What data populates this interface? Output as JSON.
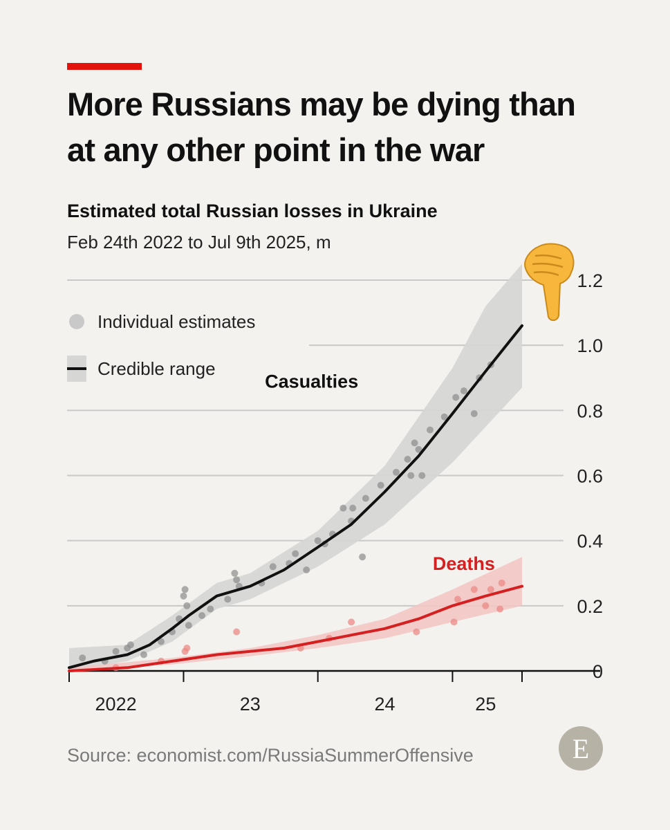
{
  "header": {
    "title": "More Russians may be dying than at any other point in the war",
    "subtitle": "Estimated total Russian losses in Ukraine",
    "units": "Feb 24th 2022 to Jul 9th 2025, m"
  },
  "legend": {
    "estimates_label": "Individual estimates",
    "range_label": "Credible range"
  },
  "footer": {
    "source": "Source: economist.com/RussiaSummerOffensive",
    "logo_letter": "E"
  },
  "overlay": {
    "emoji": "backhand-index-pointing-down-emoji"
  },
  "colors": {
    "background": "#f3f2ee",
    "accent": "#e3120b",
    "casualties_line": "#111111",
    "casualties_band": "#d6d6d4",
    "deaths_line": "#d42020",
    "deaths_band": "#f2c6c3",
    "grid": "#c8c8c8"
  },
  "chart_data": {
    "type": "line",
    "x_start": "2022-02-24",
    "x_end": "2025-07-09",
    "ylim": [
      0,
      1.2
    ],
    "y_ticks": [
      0,
      0.2,
      0.4,
      0.6,
      0.8,
      1.0,
      1.2
    ],
    "y_tick_labels": [
      "0",
      "0.2",
      "0.4",
      "0.6",
      "0.8",
      "1.0",
      "1.2"
    ],
    "x_ticks": [
      "2022-01-01",
      "2023-01-01",
      "2024-01-01",
      "2025-01-01"
    ],
    "x_tick_labels": [
      "2022",
      "23",
      "24",
      "25"
    ],
    "x_label_dates": [
      "2022-07-01",
      "2023-07-01",
      "2024-07-01",
      "2025-04-01"
    ],
    "grid": true,
    "legend_position": "top-left",
    "series": [
      {
        "name": "Casualties",
        "label_at": {
          "x": "2024-04-20",
          "y": 0.87
        },
        "line": [
          [
            "2022-02-24",
            0.01
          ],
          [
            "2022-05-01",
            0.03
          ],
          [
            "2022-08-01",
            0.05
          ],
          [
            "2022-10-01",
            0.08
          ],
          [
            "2022-12-01",
            0.13
          ],
          [
            "2023-01-15",
            0.17
          ],
          [
            "2023-04-01",
            0.23
          ],
          [
            "2023-07-01",
            0.26
          ],
          [
            "2023-10-01",
            0.31
          ],
          [
            "2024-01-01",
            0.38
          ],
          [
            "2024-04-01",
            0.45
          ],
          [
            "2024-07-01",
            0.55
          ],
          [
            "2024-10-01",
            0.66
          ],
          [
            "2025-01-01",
            0.79
          ],
          [
            "2025-04-01",
            0.92
          ],
          [
            "2025-07-09",
            1.06
          ]
        ],
        "band_lower": [
          [
            "2022-02-24",
            0.0
          ],
          [
            "2022-08-01",
            0.03
          ],
          [
            "2022-12-01",
            0.09
          ],
          [
            "2023-04-01",
            0.19
          ],
          [
            "2023-07-01",
            0.22
          ],
          [
            "2024-01-01",
            0.32
          ],
          [
            "2024-07-01",
            0.45
          ],
          [
            "2025-01-01",
            0.64
          ],
          [
            "2025-07-09",
            0.87
          ]
        ],
        "band_upper": [
          [
            "2022-02-24",
            0.07
          ],
          [
            "2022-08-01",
            0.08
          ],
          [
            "2022-12-01",
            0.17
          ],
          [
            "2023-04-01",
            0.27
          ],
          [
            "2023-07-01",
            0.3
          ],
          [
            "2024-01-01",
            0.43
          ],
          [
            "2024-07-01",
            0.63
          ],
          [
            "2025-01-01",
            0.93
          ],
          [
            "2025-04-01",
            1.12
          ],
          [
            "2025-07-09",
            1.25
          ]
        ],
        "estimates": [
          [
            "2022-04-01",
            0.04
          ],
          [
            "2022-06-01",
            0.03
          ],
          [
            "2022-07-01",
            0.06
          ],
          [
            "2022-08-01",
            0.07
          ],
          [
            "2022-08-10",
            0.08
          ],
          [
            "2022-09-15",
            0.05
          ],
          [
            "2022-11-01",
            0.09
          ],
          [
            "2022-12-01",
            0.12
          ],
          [
            "2022-12-20",
            0.16
          ],
          [
            "2023-01-01",
            0.23
          ],
          [
            "2023-01-05",
            0.25
          ],
          [
            "2023-01-10",
            0.2
          ],
          [
            "2023-01-15",
            0.14
          ],
          [
            "2023-02-20",
            0.17
          ],
          [
            "2023-03-15",
            0.19
          ],
          [
            "2023-05-01",
            0.22
          ],
          [
            "2023-05-20",
            0.3
          ],
          [
            "2023-05-25",
            0.28
          ],
          [
            "2023-06-01",
            0.26
          ],
          [
            "2023-08-01",
            0.27
          ],
          [
            "2023-09-01",
            0.32
          ],
          [
            "2023-10-15",
            0.33
          ],
          [
            "2023-11-01",
            0.36
          ],
          [
            "2023-12-01",
            0.31
          ],
          [
            "2024-01-01",
            0.4
          ],
          [
            "2024-01-20",
            0.39
          ],
          [
            "2024-02-10",
            0.42
          ],
          [
            "2024-03-10",
            0.5
          ],
          [
            "2024-04-01",
            0.46
          ],
          [
            "2024-04-05",
            0.5
          ],
          [
            "2024-05-01",
            0.35
          ],
          [
            "2024-05-10",
            0.53
          ],
          [
            "2024-06-20",
            0.57
          ],
          [
            "2024-08-01",
            0.61
          ],
          [
            "2024-09-01",
            0.65
          ],
          [
            "2024-09-10",
            0.6
          ],
          [
            "2024-09-20",
            0.7
          ],
          [
            "2024-10-01",
            0.68
          ],
          [
            "2024-10-10",
            0.6
          ],
          [
            "2024-11-01",
            0.74
          ],
          [
            "2024-12-10",
            0.78
          ],
          [
            "2025-01-10",
            0.84
          ],
          [
            "2025-02-01",
            0.86
          ],
          [
            "2025-03-01",
            0.79
          ],
          [
            "2025-03-15",
            0.9
          ],
          [
            "2025-04-15",
            0.94
          ]
        ]
      },
      {
        "name": "Deaths",
        "label_at": {
          "x": "2025-02-01",
          "y": 0.31
        },
        "line": [
          [
            "2022-02-24",
            0.0
          ],
          [
            "2022-08-01",
            0.01
          ],
          [
            "2022-12-01",
            0.03
          ],
          [
            "2023-04-01",
            0.05
          ],
          [
            "2023-10-01",
            0.07
          ],
          [
            "2024-01-01",
            0.09
          ],
          [
            "2024-04-01",
            0.11
          ],
          [
            "2024-07-01",
            0.13
          ],
          [
            "2024-10-01",
            0.16
          ],
          [
            "2025-01-01",
            0.2
          ],
          [
            "2025-04-01",
            0.23
          ],
          [
            "2025-07-09",
            0.26
          ]
        ],
        "band_lower": [
          [
            "2022-02-24",
            0.0
          ],
          [
            "2022-12-01",
            0.02
          ],
          [
            "2023-07-01",
            0.045
          ],
          [
            "2024-01-01",
            0.07
          ],
          [
            "2024-07-01",
            0.1
          ],
          [
            "2025-01-01",
            0.15
          ],
          [
            "2025-07-09",
            0.2
          ]
        ],
        "band_upper": [
          [
            "2022-02-24",
            0.01
          ],
          [
            "2022-12-01",
            0.04
          ],
          [
            "2023-07-01",
            0.07
          ],
          [
            "2024-01-01",
            0.11
          ],
          [
            "2024-07-01",
            0.16
          ],
          [
            "2025-01-01",
            0.25
          ],
          [
            "2025-07-09",
            0.35
          ]
        ],
        "estimates": [
          [
            "2022-07-01",
            0.01
          ],
          [
            "2022-11-01",
            0.03
          ],
          [
            "2023-01-05",
            0.06
          ],
          [
            "2023-01-10",
            0.07
          ],
          [
            "2023-05-25",
            0.12
          ],
          [
            "2023-11-15",
            0.07
          ],
          [
            "2024-02-01",
            0.1
          ],
          [
            "2024-04-01",
            0.15
          ],
          [
            "2024-09-25",
            0.12
          ],
          [
            "2025-01-05",
            0.15
          ],
          [
            "2025-01-15",
            0.22
          ],
          [
            "2025-03-01",
            0.25
          ],
          [
            "2025-04-01",
            0.2
          ],
          [
            "2025-04-15",
            0.25
          ],
          [
            "2025-05-10",
            0.19
          ],
          [
            "2025-05-15",
            0.27
          ]
        ]
      }
    ]
  }
}
